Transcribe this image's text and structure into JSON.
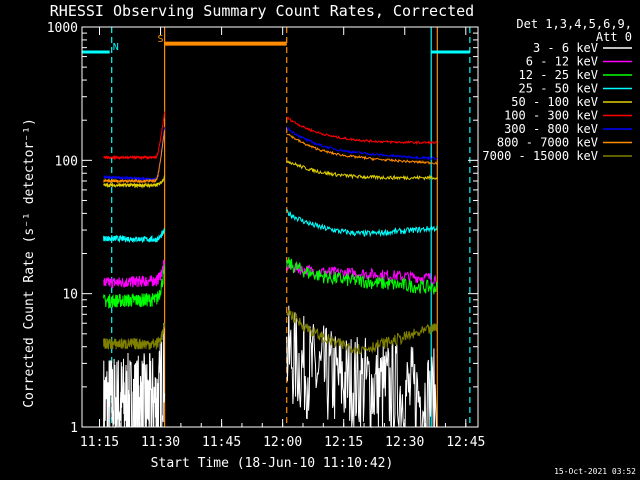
{
  "chart_data": {
    "type": "line",
    "title": "RHESSI Observing Summary Count Rates, Corrected",
    "xlabel": "Start Time (18-Jun-10 11:10:42)",
    "ylabel": "Corrected Count Rate (s⁻¹ detector⁻¹)",
    "y_scale": "log",
    "ylim": [
      1,
      1000
    ],
    "xlim": [
      "11:10:42",
      "12:48:00"
    ],
    "x_ticks": [
      "11:15",
      "11:30",
      "11:45",
      "12:00",
      "12:15",
      "12:30",
      "12:45"
    ],
    "y_ticks": [
      "1",
      "10",
      "100",
      "1000"
    ],
    "detectors_label": "Det 1,3,4,5,6,9,",
    "attenuator_label": "Att 0",
    "timestamp": "15-Oct-2021 03:52",
    "flags": [
      {
        "label": "N",
        "color": "#00ffff"
      },
      {
        "label": "S",
        "color": "#ff8c00"
      }
    ],
    "night_segments": [
      {
        "start": "11:10:42",
        "end": "11:17:30",
        "level": 650
      },
      {
        "start": "12:36:30",
        "end": "12:46:00",
        "level": 650
      }
    ],
    "saa_segments": [
      {
        "start": "11:31:00",
        "end": "12:01:00",
        "level": 750
      }
    ],
    "markers": [
      {
        "time": "11:18:00",
        "color": "#00ffff",
        "style": "dashed"
      },
      {
        "time": "11:31:00",
        "color": "#ff8c00",
        "style": "solid"
      },
      {
        "time": "12:01:00",
        "color": "#ff8c00",
        "style": "dashed"
      },
      {
        "time": "12:36:30",
        "color": "#00ffff",
        "style": "solid"
      },
      {
        "time": "12:38:00",
        "color": "#ff8c00",
        "style": "solid"
      },
      {
        "time": "12:46:00",
        "color": "#00ffff",
        "style": "dashed"
      }
    ],
    "intervals": [
      {
        "start": "11:16:00",
        "end": "11:31:00"
      },
      {
        "start": "12:01:00",
        "end": "12:38:00"
      }
    ],
    "series": [
      {
        "name": "3 - 6 keV",
        "color": "#ffffff",
        "seg1": [
          1.5,
          1.5,
          3.0
        ],
        "seg2": [
          3.5,
          2.0,
          1.6
        ],
        "noise": 0.55
      },
      {
        "name": "6 - 12 keV",
        "color": "#ff00ff",
        "seg1": [
          12,
          12.5,
          17
        ],
        "seg2": [
          16,
          14,
          13
        ],
        "noise": 0.1
      },
      {
        "name": "12 - 25 keV",
        "color": "#00ff00",
        "seg1": [
          8.8,
          9.0,
          15
        ],
        "seg2": [
          17,
          12,
          11
        ],
        "noise": 0.12
      },
      {
        "name": "25 - 50 keV",
        "color": "#00ffff",
        "seg1": [
          26,
          25.5,
          30
        ],
        "seg2": [
          41,
          27,
          31
        ],
        "noise": 0.05
      },
      {
        "name": "50 - 100 keV",
        "color": "#e0d000",
        "seg1": [
          65,
          65,
          75
        ],
        "seg2": [
          100,
          73,
          74
        ],
        "noise": 0.03
      },
      {
        "name": "100 - 300 keV",
        "color": "#ff0000",
        "seg1": [
          105,
          105,
          230
        ],
        "seg2": [
          210,
          135,
          135
        ],
        "noise": 0.02
      },
      {
        "name": "300 - 800 keV",
        "color": "#0000ff",
        "seg1": [
          75,
          72,
          180
        ],
        "seg2": [
          175,
          108,
          103
        ],
        "noise": 0.02
      },
      {
        "name": "800 - 7000 keV",
        "color": "#ff8c00",
        "seg1": [
          70,
          70,
          170
        ],
        "seg2": [
          160,
          100,
          95
        ],
        "noise": 0.02
      },
      {
        "name": "7000 - 15000 keV",
        "color": "#808000",
        "seg1": [
          4.2,
          4.2,
          5.5
        ],
        "seg2": [
          7.5,
          3.5,
          5.5
        ],
        "noise": 0.1
      }
    ]
  }
}
